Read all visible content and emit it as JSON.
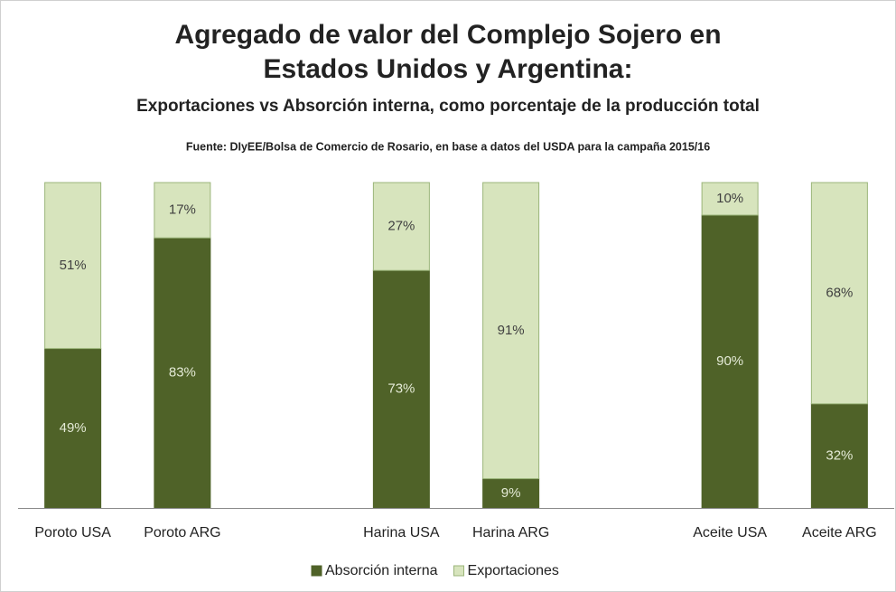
{
  "chart_data": {
    "type": "stacked_bar",
    "title": [
      "Agregado de valor del Complejo Sojero en",
      "Estados Unidos y Argentina:"
    ],
    "subtitle": "Exportaciones vs Absorción interna, como porcentaje de la producción total",
    "source": "Fuente: DIyEE/Bolsa de Comercio de Rosario, en base a datos del USDA para la campaña 2015/16",
    "categories": [
      "Poroto USA",
      "Poroto ARG",
      null,
      "Harina USA",
      "Harina ARG",
      null,
      "Aceite USA",
      "Aceite ARG"
    ],
    "ylim": [
      0,
      100
    ],
    "series": [
      {
        "name": "Absorción interna",
        "color": "#4f6228",
        "label_color": "#e4ead6",
        "values": [
          49,
          83,
          null,
          73,
          9,
          null,
          90,
          32
        ],
        "value_labels": [
          "49%",
          "83%",
          null,
          "73%",
          "9%",
          null,
          "90%",
          "32%"
        ]
      },
      {
        "name": "Exportaciones",
        "color": "#d7e4bd",
        "label_color": "#404040",
        "values": [
          51,
          17,
          null,
          27,
          91,
          null,
          10,
          68
        ],
        "value_labels": [
          "51%",
          "17%",
          null,
          "27%",
          "91%",
          null,
          "10%",
          "68%"
        ]
      }
    ],
    "legend": "bottom"
  }
}
